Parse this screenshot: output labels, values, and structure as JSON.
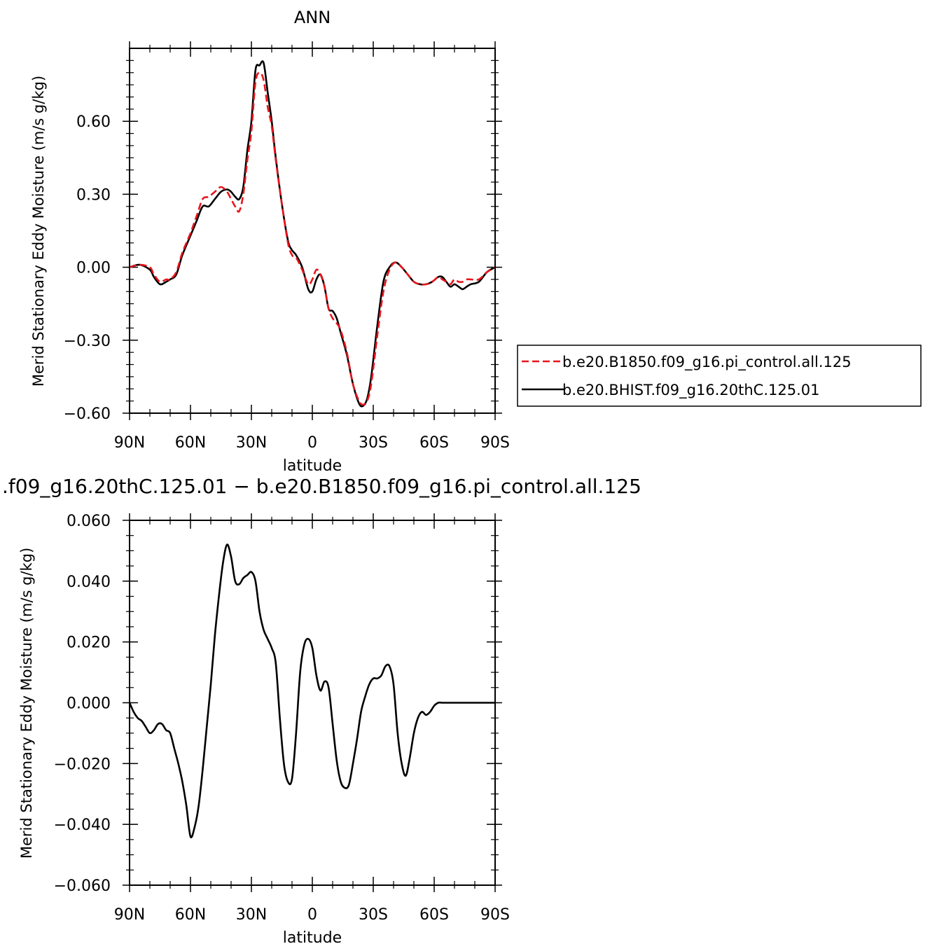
{
  "chart_data": [
    {
      "type": "line",
      "title": "ANN",
      "xlabel": "latitude",
      "ylabel": "Merid Stationary Eddy Moisture (m/s g/kg)",
      "xlim": [
        90,
        -90
      ],
      "ylim": [
        -0.6,
        0.9
      ],
      "xticks": [
        {
          "value": 90,
          "label": "90N"
        },
        {
          "value": 60,
          "label": "60N"
        },
        {
          "value": 30,
          "label": "30N"
        },
        {
          "value": 0,
          "label": "0"
        },
        {
          "value": -30,
          "label": "30S"
        },
        {
          "value": -60,
          "label": "60S"
        },
        {
          "value": -90,
          "label": "90S"
        }
      ],
      "yticks": [
        {
          "value": -0.6,
          "label": "−0.60"
        },
        {
          "value": -0.3,
          "label": "−0.30"
        },
        {
          "value": 0.0,
          "label": "0.00"
        },
        {
          "value": 0.3,
          "label": "0.30"
        },
        {
          "value": 0.6,
          "label": "0.60"
        }
      ],
      "legend": {
        "placement": "right"
      },
      "x": [
        90,
        85,
        80,
        78,
        75,
        72,
        70,
        67,
        64,
        60,
        57,
        54,
        51,
        48,
        45,
        42,
        40,
        38,
        36,
        34,
        32,
        30,
        28,
        26,
        24,
        22,
        20,
        18,
        15,
        12,
        10,
        8,
        5,
        2,
        0,
        -2,
        -4,
        -6,
        -8,
        -10,
        -12,
        -14,
        -17,
        -20,
        -23,
        -25,
        -27,
        -29,
        -32,
        -35,
        -38,
        -41,
        -44,
        -47,
        -50,
        -53,
        -56,
        -59,
        -62,
        -64,
        -66,
        -68,
        -70,
        -72,
        -74,
        -76,
        -78,
        -82,
        -86,
        -90
      ],
      "series": [
        {
          "name": "b.e20.B1850.f09_g16.pi_control.all.125",
          "color": "#e8141c",
          "dash": "dashed",
          "values": [
            0.0,
            0.01,
            0.0,
            -0.03,
            -0.06,
            -0.05,
            -0.05,
            -0.02,
            0.06,
            0.14,
            0.21,
            0.28,
            0.29,
            0.31,
            0.33,
            0.31,
            0.28,
            0.25,
            0.23,
            0.3,
            0.44,
            0.56,
            0.76,
            0.8,
            0.77,
            0.66,
            0.58,
            0.44,
            0.26,
            0.1,
            0.05,
            0.04,
            -0.01,
            -0.07,
            -0.05,
            -0.01,
            -0.03,
            -0.08,
            -0.17,
            -0.21,
            -0.23,
            -0.26,
            -0.35,
            -0.48,
            -0.55,
            -0.565,
            -0.55,
            -0.48,
            -0.28,
            -0.1,
            -0.01,
            0.02,
            0.0,
            -0.03,
            -0.06,
            -0.07,
            -0.07,
            -0.06,
            -0.04,
            -0.05,
            -0.06,
            -0.07,
            -0.05,
            -0.06,
            -0.06,
            -0.05,
            -0.05,
            -0.05,
            -0.02,
            0.0
          ]
        },
        {
          "name": "b.e20.BHIST.f09_g16.20thC.125.01",
          "color": "#000000",
          "dash": "solid",
          "values": [
            0.0,
            0.01,
            -0.01,
            -0.04,
            -0.07,
            -0.06,
            -0.05,
            -0.03,
            0.05,
            0.13,
            0.19,
            0.25,
            0.25,
            0.28,
            0.31,
            0.32,
            0.31,
            0.29,
            0.28,
            0.33,
            0.48,
            0.6,
            0.81,
            0.83,
            0.84,
            0.72,
            0.6,
            0.45,
            0.26,
            0.11,
            0.07,
            0.05,
            0.0,
            -0.09,
            -0.1,
            -0.05,
            -0.03,
            -0.08,
            -0.17,
            -0.18,
            -0.21,
            -0.27,
            -0.36,
            -0.48,
            -0.56,
            -0.57,
            -0.54,
            -0.45,
            -0.24,
            -0.06,
            0.0,
            0.02,
            0.0,
            -0.03,
            -0.06,
            -0.07,
            -0.07,
            -0.06,
            -0.04,
            -0.04,
            -0.06,
            -0.08,
            -0.07,
            -0.08,
            -0.09,
            -0.08,
            -0.07,
            -0.06,
            -0.02,
            0.0
          ]
        }
      ]
    },
    {
      "type": "line",
      "title": ".f09_g16.20thC.125.01 − b.e20.B1850.f09_g16.pi_control.all.125",
      "xlabel": "latitude",
      "ylabel": "Merid Stationary Eddy Moisture (m/s g/kg)",
      "xlim": [
        90,
        -90
      ],
      "ylim": [
        -0.06,
        0.06
      ],
      "xticks": [
        {
          "value": 90,
          "label": "90N"
        },
        {
          "value": 60,
          "label": "60N"
        },
        {
          "value": 30,
          "label": "30N"
        },
        {
          "value": 0,
          "label": "0"
        },
        {
          "value": -30,
          "label": "30S"
        },
        {
          "value": -60,
          "label": "60S"
        },
        {
          "value": -90,
          "label": "90S"
        }
      ],
      "yticks": [
        {
          "value": -0.06,
          "label": "−0.060"
        },
        {
          "value": -0.04,
          "label": "−0.040"
        },
        {
          "value": -0.02,
          "label": "−0.020"
        },
        {
          "value": 0.0,
          "label": "0.000"
        },
        {
          "value": 0.02,
          "label": "0.020"
        },
        {
          "value": 0.04,
          "label": "0.040"
        },
        {
          "value": 0.06,
          "label": "0.060"
        }
      ],
      "x": [
        90,
        88,
        86,
        84,
        82,
        80,
        78,
        76,
        74,
        72,
        70,
        68,
        66,
        64,
        62,
        60,
        58,
        56,
        54,
        52,
        50,
        48,
        46,
        44,
        42,
        40,
        38,
        36,
        34,
        32,
        30,
        28,
        26,
        24,
        22,
        20,
        18,
        16,
        14,
        12,
        10,
        8,
        6,
        4,
        2,
        0,
        -2,
        -4,
        -6,
        -8,
        -10,
        -12,
        -14,
        -16,
        -18,
        -20,
        -22,
        -24,
        -26,
        -28,
        -30,
        -32,
        -34,
        -36,
        -38,
        -40,
        -42,
        -44,
        -46,
        -48,
        -50,
        -52,
        -54,
        -56,
        -58,
        -60,
        -62,
        -64,
        -66,
        -68,
        -70,
        -72,
        -74,
        -76,
        -78,
        -80,
        -82,
        -84,
        -86,
        -88,
        -90
      ],
      "series": [
        {
          "name": "",
          "color": "#000000",
          "dash": "solid",
          "values": [
            0.0,
            -0.003,
            -0.005,
            -0.006,
            -0.008,
            -0.01,
            -0.009,
            -0.007,
            -0.007,
            -0.009,
            -0.01,
            -0.015,
            -0.02,
            -0.026,
            -0.034,
            -0.044,
            -0.041,
            -0.034,
            -0.022,
            -0.008,
            0.006,
            0.022,
            0.035,
            0.046,
            0.052,
            0.048,
            0.04,
            0.039,
            0.041,
            0.042,
            0.043,
            0.04,
            0.03,
            0.024,
            0.021,
            0.018,
            0.013,
            -0.005,
            -0.02,
            -0.026,
            -0.025,
            -0.01,
            0.01,
            0.019,
            0.021,
            0.018,
            0.009,
            0.004,
            0.007,
            0.005,
            -0.007,
            -0.019,
            -0.026,
            -0.028,
            -0.027,
            -0.02,
            -0.012,
            -0.003,
            0.002,
            0.006,
            0.008,
            0.008,
            0.009,
            0.012,
            0.012,
            0.006,
            -0.01,
            -0.02,
            -0.024,
            -0.018,
            -0.01,
            -0.005,
            -0.003,
            -0.004,
            -0.003,
            -0.001,
            0.0,
            0.0,
            0.0,
            0.0,
            0.0,
            0.0,
            0.0,
            0.0,
            0.0,
            0.0,
            0.0,
            0.0,
            0.0,
            0.0,
            0.0
          ]
        }
      ]
    }
  ]
}
